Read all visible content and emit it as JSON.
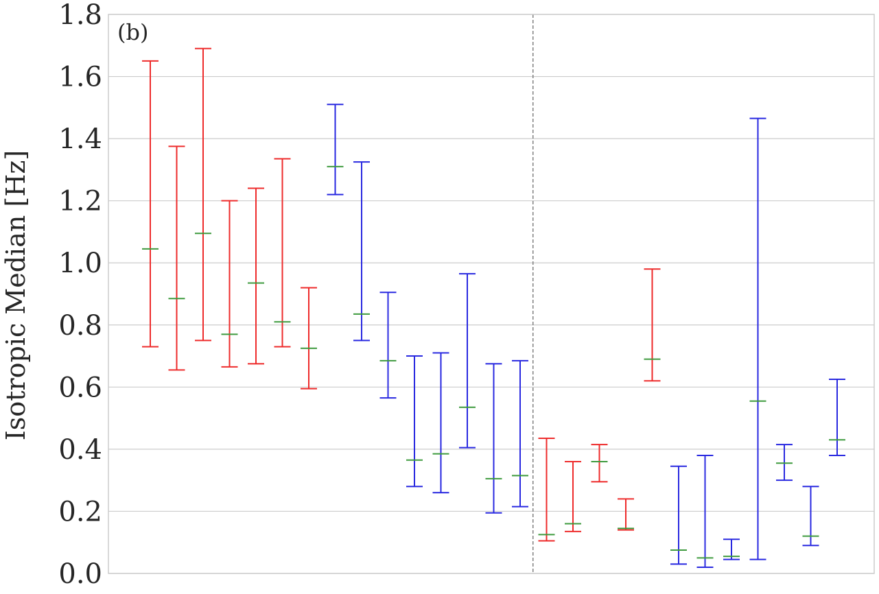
{
  "chart_data": {
    "type": "errorbar",
    "panel_label": "(b)",
    "ylabel": "Isotropic Median [Hz]",
    "xlabel": "",
    "ylim": [
      0.0,
      1.8
    ],
    "yticks": [
      "0.0",
      "0.2",
      "0.4",
      "0.6",
      "0.8",
      "1.0",
      "1.2",
      "1.4",
      "1.6",
      "1.8"
    ],
    "grid": "horizontal",
    "divider_after_index": 15,
    "colors": {
      "red": "#ee2b2b",
      "blue": "#2828e0",
      "median": "#3d9a3d",
      "divider": "#808080",
      "grid": "#cccccc",
      "frame": "#cccccc"
    },
    "series": [
      {
        "color": "red",
        "low": 0.73,
        "median": 1.045,
        "high": 1.65
      },
      {
        "color": "red",
        "low": 0.655,
        "median": 0.885,
        "high": 1.375
      },
      {
        "color": "red",
        "low": 0.75,
        "median": 1.095,
        "high": 1.69
      },
      {
        "color": "red",
        "low": 0.665,
        "median": 0.77,
        "high": 1.2
      },
      {
        "color": "red",
        "low": 0.675,
        "median": 0.935,
        "high": 1.24
      },
      {
        "color": "red",
        "low": 0.73,
        "median": 0.81,
        "high": 1.335
      },
      {
        "color": "red",
        "low": 0.595,
        "median": 0.725,
        "high": 0.92
      },
      {
        "color": "blue",
        "low": 1.22,
        "median": 1.31,
        "high": 1.51
      },
      {
        "color": "blue",
        "low": 0.75,
        "median": 0.835,
        "high": 1.325
      },
      {
        "color": "blue",
        "low": 0.565,
        "median": 0.685,
        "high": 0.905
      },
      {
        "color": "blue",
        "low": 0.28,
        "median": 0.365,
        "high": 0.7
      },
      {
        "color": "blue",
        "low": 0.26,
        "median": 0.385,
        "high": 0.71
      },
      {
        "color": "blue",
        "low": 0.405,
        "median": 0.535,
        "high": 0.965
      },
      {
        "color": "blue",
        "low": 0.195,
        "median": 0.305,
        "high": 0.675
      },
      {
        "color": "blue",
        "low": 0.215,
        "median": 0.315,
        "high": 0.685
      },
      {
        "color": "red",
        "low": 0.105,
        "median": 0.125,
        "high": 0.435
      },
      {
        "color": "red",
        "low": 0.135,
        "median": 0.16,
        "high": 0.36
      },
      {
        "color": "red",
        "low": 0.295,
        "median": 0.36,
        "high": 0.415
      },
      {
        "color": "red",
        "low": 0.14,
        "median": 0.145,
        "high": 0.24
      },
      {
        "color": "red",
        "low": 0.62,
        "median": 0.69,
        "high": 0.98
      },
      {
        "color": "blue",
        "low": 0.03,
        "median": 0.075,
        "high": 0.345
      },
      {
        "color": "blue",
        "low": 0.02,
        "median": 0.05,
        "high": 0.38
      },
      {
        "color": "blue",
        "low": 0.045,
        "median": 0.055,
        "high": 0.11
      },
      {
        "color": "blue",
        "low": 0.045,
        "median": 0.555,
        "high": 1.465
      },
      {
        "color": "blue",
        "low": 0.3,
        "median": 0.355,
        "high": 0.415
      },
      {
        "color": "blue",
        "low": 0.09,
        "median": 0.12,
        "high": 0.28
      },
      {
        "color": "blue",
        "low": 0.38,
        "median": 0.43,
        "high": 0.625
      }
    ]
  }
}
